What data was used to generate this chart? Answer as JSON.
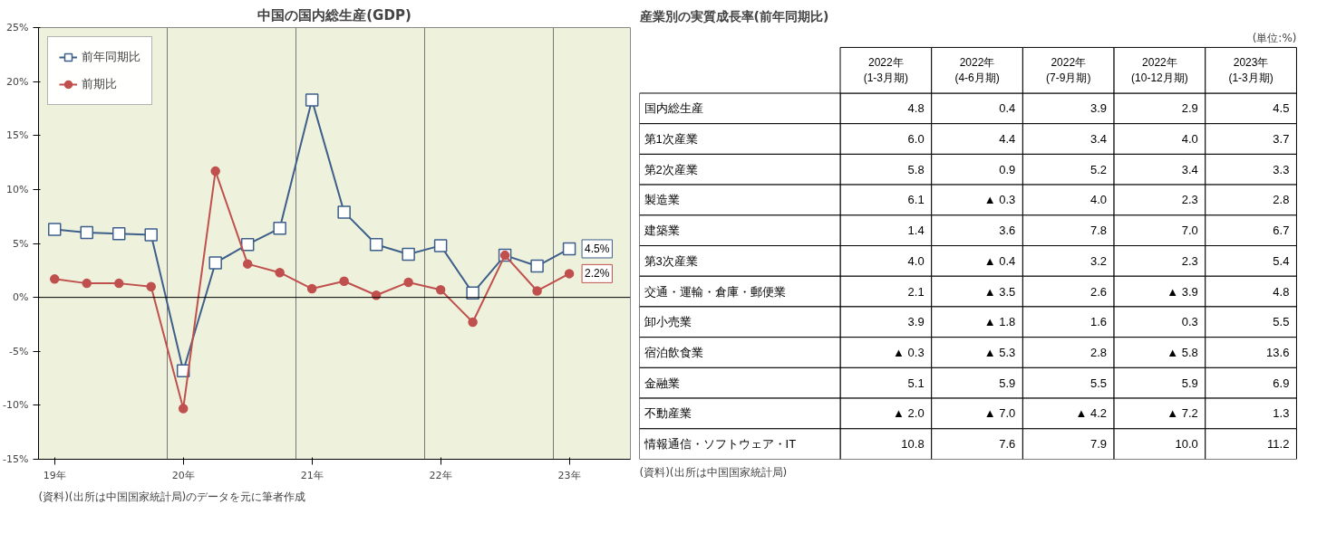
{
  "chart_data": [
    {
      "type": "line",
      "title": "中国の国内総生産(GDP)",
      "categories": [
        "19年",
        null,
        null,
        null,
        "20年",
        null,
        null,
        null,
        "21年",
        null,
        null,
        null,
        "22年",
        null,
        null,
        null,
        "23年"
      ],
      "series": [
        {
          "name": "前年同期比",
          "color": "#3d5f8a",
          "marker": "square",
          "values": [
            6.3,
            6.0,
            5.9,
            5.8,
            -6.8,
            3.2,
            4.9,
            6.4,
            18.3,
            7.9,
            4.9,
            4.0,
            4.8,
            0.4,
            3.9,
            2.9,
            4.5
          ],
          "value_labels": [
            null,
            null,
            null,
            null,
            null,
            null,
            null,
            null,
            null,
            null,
            null,
            null,
            null,
            null,
            null,
            null,
            "4.5%"
          ]
        },
        {
          "name": "前期比",
          "color": "#c0504d",
          "marker": "circle",
          "values": [
            1.7,
            1.3,
            1.3,
            1.0,
            -10.3,
            11.7,
            3.1,
            2.3,
            0.8,
            1.5,
            0.2,
            1.4,
            0.7,
            -2.3,
            3.9,
            0.6,
            2.2
          ],
          "value_labels": [
            null,
            null,
            null,
            null,
            null,
            null,
            null,
            null,
            null,
            null,
            null,
            null,
            null,
            null,
            null,
            null,
            "2.2%"
          ]
        }
      ],
      "ylim": [
        -15,
        25
      ],
      "yticks": [
        {
          "value": -15,
          "label": "-15%"
        },
        {
          "value": -10,
          "label": "-10%"
        },
        {
          "value": -5,
          "label": "-5%"
        },
        {
          "value": 0,
          "label": "0%"
        },
        {
          "value": 5,
          "label": "5%"
        },
        {
          "value": 10,
          "label": "10%"
        },
        {
          "value": 15,
          "label": "15%"
        },
        {
          "value": 20,
          "label": "20%"
        },
        {
          "value": 25,
          "label": "25%"
        }
      ],
      "grid": "x",
      "legend": "top left",
      "ref_lines": [
        {
          "axis": "y",
          "value": 0,
          "color": "#000000"
        }
      ],
      "annotations": [
        "(資料)(出所は中国国家統計局)のデータを元に筆者作成"
      ]
    },
    {
      "type": "other",
      "title": "産業別の実質成長率(前年同期比)",
      "categories": [
        "2022年\n(1-3月期)",
        "2022年\n(4-6月期)",
        "2022年\n(7-9月期)",
        "2022年\n(10-12月期)",
        "2023年\n(1-3月期)"
      ],
      "y_categories": [
        "国内総生産",
        "第1次産業",
        "第2次産業",
        "製造業",
        "建築業",
        "第3次産業",
        "交通・運輸・倉庫・郵便業",
        "卸小売業",
        "宿泊飲食業",
        "金融業",
        "不動産業",
        "情報通信・ソフトウェア・IT"
      ],
      "cell_labels": [
        [
          "4.8",
          "0.4",
          "3.9",
          "2.9",
          "4.5"
        ],
        [
          "6.0",
          "4.4",
          "3.4",
          "4.0",
          "3.7"
        ],
        [
          "5.8",
          "0.9",
          "5.2",
          "3.4",
          "3.3"
        ],
        [
          "6.1",
          "▲ 0.3",
          "4.0",
          "2.3",
          "2.8"
        ],
        [
          "1.4",
          "3.6",
          "7.8",
          "7.0",
          "6.7"
        ],
        [
          "4.0",
          "▲ 0.4",
          "3.2",
          "2.3",
          "5.4"
        ],
        [
          "2.1",
          "▲ 3.5",
          "2.6",
          "▲ 3.9",
          "4.8"
        ],
        [
          "3.9",
          "▲ 1.8",
          "1.6",
          "0.3",
          "5.5"
        ],
        [
          "▲ 0.3",
          "▲ 5.3",
          "2.8",
          "▲ 5.8",
          "13.6"
        ],
        [
          "5.1",
          "5.9",
          "5.5",
          "5.9",
          "6.9"
        ],
        [
          "▲ 2.0",
          "▲ 7.0",
          "▲ 4.2",
          "▲ 7.2",
          "1.3"
        ],
        [
          "10.8",
          "7.6",
          "7.9",
          "10.0",
          "11.2"
        ]
      ],
      "annotations": [
        "(単位:%)",
        "(資料)(出所は中国国家統計局)"
      ]
    }
  ]
}
